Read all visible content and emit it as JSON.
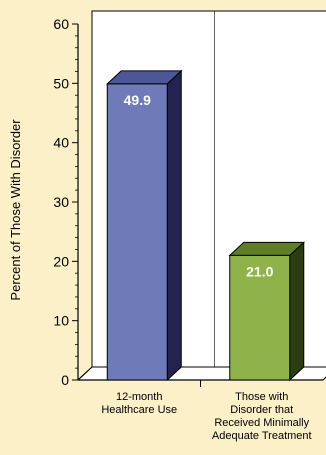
{
  "chart_data": {
    "type": "bar",
    "categories": [
      [
        "12-month",
        "Healthcare Use"
      ],
      [
        "Those with",
        "Disorder that",
        "Received Minimally",
        "Adequate Treatment"
      ]
    ],
    "values": [
      49.9,
      21.0
    ],
    "data_labels": [
      "49.9",
      "21.0"
    ],
    "ylabel": "Percent of Those With Disorder",
    "ylim": [
      0,
      60
    ],
    "yticks": [
      0,
      10,
      20,
      30,
      40,
      50,
      60
    ],
    "ytick_labels": [
      "0",
      "10",
      "20",
      "30",
      "40",
      "50",
      "60"
    ],
    "grid": false,
    "colors": {
      "background": "#fbf0c8",
      "plot_panel": "#ffffff",
      "bar_front": [
        "#6f7ab8",
        "#8fb34a"
      ],
      "bar_side": [
        "#24234f",
        "#2b3d11"
      ],
      "bar_top": [
        "#4d5696",
        "#5e7d25"
      ],
      "label": "#ffffff"
    }
  }
}
